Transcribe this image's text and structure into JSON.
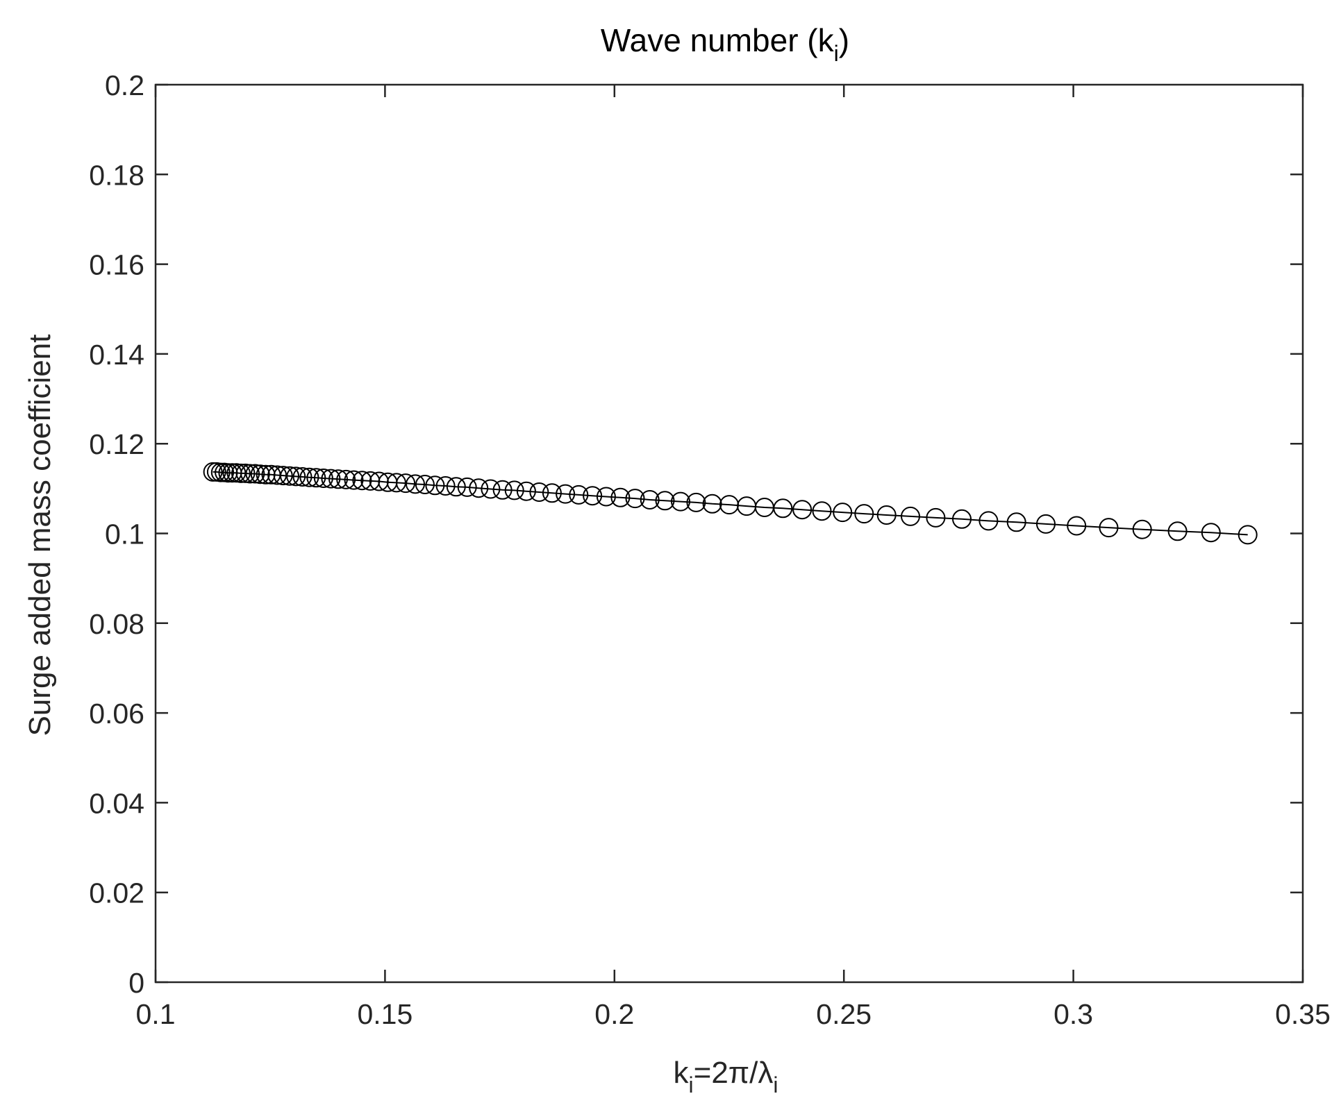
{
  "chart_data": {
    "type": "line",
    "title": {
      "text": "Wave number (k",
      "sub": "i",
      "tail": ")"
    },
    "xlabel": {
      "parts": [
        {
          "t": "k",
          "sub": false
        },
        {
          "t": "i",
          "sub": true
        },
        {
          "t": "=2π/λ",
          "sub": false
        },
        {
          "t": "i",
          "sub": true
        }
      ]
    },
    "ylabel": "Surge added mass coefficient",
    "xlim": [
      0.1,
      0.35
    ],
    "ylim": [
      0,
      0.2
    ],
    "xticks": [
      0.1,
      0.15,
      0.2,
      0.25,
      0.3,
      0.35
    ],
    "xtick_labels": [
      "0.1",
      "0.15",
      "0.2",
      "0.25",
      "0.3",
      "0.35"
    ],
    "yticks": [
      0,
      0.02,
      0.04,
      0.06,
      0.08,
      0.1,
      0.12,
      0.14,
      0.16,
      0.18,
      0.2
    ],
    "ytick_labels": [
      "0",
      "0.02",
      "0.04",
      "0.06",
      "0.08",
      "0.1",
      "0.12",
      "0.14",
      "0.16",
      "0.18",
      "0.2"
    ],
    "grid": false,
    "box": true,
    "series": [
      {
        "marker": "circle-open",
        "line": "solid",
        "color": "#000000",
        "x": [
          0.1125,
          0.1133,
          0.1142,
          0.115,
          0.1158,
          0.1167,
          0.1176,
          0.1186,
          0.1196,
          0.1206,
          0.1217,
          0.1228,
          0.124,
          0.1252,
          0.1265,
          0.1278,
          0.1292,
          0.1306,
          0.132,
          0.1335,
          0.135,
          0.1366,
          0.1382,
          0.1398,
          0.1415,
          0.1432,
          0.145,
          0.1468,
          0.1487,
          0.1506,
          0.1525,
          0.1545,
          0.1566,
          0.1587,
          0.1609,
          0.1632,
          0.1655,
          0.1679,
          0.1704,
          0.173,
          0.1756,
          0.1782,
          0.1808,
          0.1836,
          0.1864,
          0.1893,
          0.1922,
          0.1952,
          0.1982,
          0.2013,
          0.2045,
          0.2077,
          0.211,
          0.2144,
          0.2178,
          0.2213,
          0.225,
          0.2288,
          0.2327,
          0.2367,
          0.2409,
          0.2452,
          0.2497,
          0.2544,
          0.2593,
          0.2645,
          0.27,
          0.2757,
          0.2815,
          0.2876,
          0.294,
          0.3007,
          0.3077,
          0.315,
          0.3227,
          0.33,
          0.338
        ],
        "y": [
          0.1137,
          0.1137,
          0.1136,
          0.1136,
          0.1135,
          0.1135,
          0.1135,
          0.1134,
          0.1134,
          0.1133,
          0.1133,
          0.1132,
          0.1131,
          0.1131,
          0.113,
          0.1129,
          0.1128,
          0.1127,
          0.1126,
          0.1125,
          0.1124,
          0.1123,
          0.1122,
          0.1121,
          0.112,
          0.1119,
          0.1118,
          0.1117,
          0.1116,
          0.1114,
          0.1113,
          0.1112,
          0.111,
          0.1109,
          0.1107,
          0.1106,
          0.1104,
          0.1103,
          0.1101,
          0.1099,
          0.1097,
          0.1096,
          0.1094,
          0.1092,
          0.109,
          0.1088,
          0.1086,
          0.1084,
          0.1082,
          0.108,
          0.1078,
          0.1075,
          0.1073,
          0.1071,
          0.1069,
          0.1066,
          0.1064,
          0.1061,
          0.1058,
          0.1056,
          0.1053,
          0.105,
          0.1047,
          0.1044,
          0.1041,
          0.1038,
          0.1035,
          0.1032,
          0.1028,
          0.1025,
          0.1021,
          0.1017,
          0.1013,
          0.1009,
          0.1005,
          0.1002,
          0.0997
        ]
      }
    ]
  }
}
